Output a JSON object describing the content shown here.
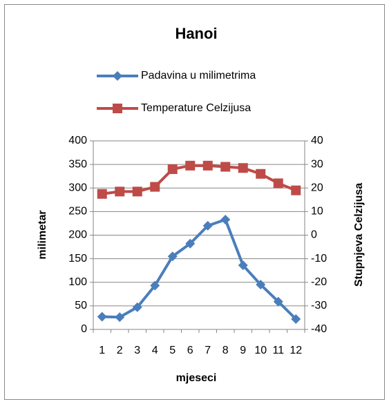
{
  "chart_data": {
    "type": "line",
    "title": "Hanoi",
    "categories": [
      "1",
      "2",
      "3",
      "4",
      "5",
      "6",
      "7",
      "8",
      "9",
      "10",
      "11",
      "12"
    ],
    "xlabel": "mjeseci",
    "ylabel": "milimetar",
    "y2label": "Stupnjeva Celzijusa",
    "series": [
      {
        "name": "Padavina u milimetrima",
        "color": "#4a7ebb",
        "marker": "diamond",
        "values": [
          27,
          26,
          47,
          93,
          155,
          182,
          220,
          233,
          136,
          95,
          59,
          22
        ]
      },
      {
        "name": "Temperature Celzijusa",
        "color": "#be4b48",
        "marker": "square",
        "axis": "y2",
        "values": [
          17.5,
          18.5,
          18.5,
          20.5,
          28,
          29.5,
          29.5,
          29,
          28.5,
          26,
          22,
          19
        ]
      }
    ],
    "ylim": [
      0,
      400
    ],
    "yticks": [
      0,
      50,
      100,
      150,
      200,
      250,
      300,
      350,
      400
    ],
    "y2lim": [
      -40,
      40
    ],
    "y2ticks": [
      -40,
      -30,
      -20,
      -10,
      0,
      10,
      20,
      30,
      40
    ],
    "grid": true,
    "legend": "top"
  }
}
